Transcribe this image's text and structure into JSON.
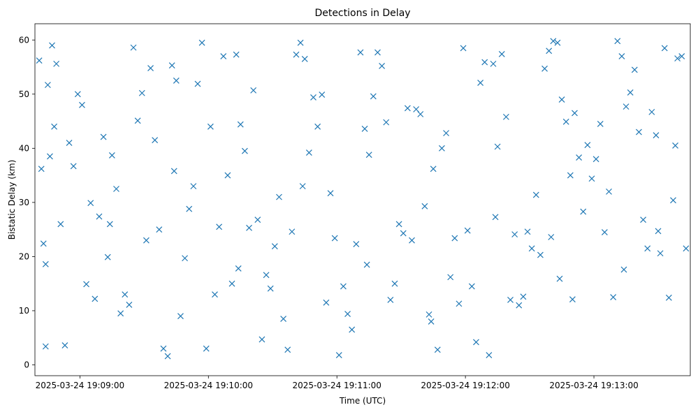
{
  "chart_data": {
    "type": "scatter",
    "title": "Detections in Delay",
    "xlabel": "Time (UTC)",
    "ylabel": "Bistatic Delay (km)",
    "marker": "x",
    "color": "#1f77b4",
    "grid": false,
    "legend": "none",
    "xlim": [
      "2025-03-24 19:08:39",
      "2025-03-24 19:13:45"
    ],
    "ylim": [
      -2,
      63
    ],
    "x_ticks": [
      "2025-03-24 19:09:00",
      "2025-03-24 19:10:00",
      "2025-03-24 19:11:00",
      "2025-03-24 19:12:00",
      "2025-03-24 19:13:00"
    ],
    "y_ticks": [
      0,
      10,
      20,
      30,
      40,
      50,
      60
    ],
    "points": {
      "x": [
        "2025-03-24 19:08:41",
        "2025-03-24 19:08:42",
        "2025-03-24 19:08:43",
        "2025-03-24 19:08:44",
        "2025-03-24 19:08:45",
        "2025-03-24 19:08:46",
        "2025-03-24 19:08:47",
        "2025-03-24 19:08:48",
        "2025-03-24 19:08:49",
        "2025-03-24 19:08:51",
        "2025-03-24 19:08:53",
        "2025-03-24 19:08:55",
        "2025-03-24 19:08:57",
        "2025-03-24 19:08:59",
        "2025-03-24 19:09:01",
        "2025-03-24 19:09:03",
        "2025-03-24 19:09:05",
        "2025-03-24 19:09:07",
        "2025-03-24 19:09:09",
        "2025-03-24 19:09:11",
        "2025-03-24 19:09:13",
        "2025-03-24 19:09:15",
        "2025-03-24 19:09:17",
        "2025-03-24 19:09:19",
        "2025-03-24 19:09:21",
        "2025-03-24 19:09:23",
        "2025-03-24 19:09:25",
        "2025-03-24 19:09:27",
        "2025-03-24 19:09:29",
        "2025-03-24 19:09:31",
        "2025-03-24 19:09:33",
        "2025-03-24 19:09:35",
        "2025-03-24 19:09:37",
        "2025-03-24 19:09:39",
        "2025-03-24 19:09:41",
        "2025-03-24 19:09:43",
        "2025-03-24 19:09:45",
        "2025-03-24 19:09:47",
        "2025-03-24 19:09:49",
        "2025-03-24 19:09:51",
        "2025-03-24 19:09:53",
        "2025-03-24 19:09:55",
        "2025-03-24 19:09:57",
        "2025-03-24 19:09:59",
        "2025-03-24 19:10:01",
        "2025-03-24 19:10:03",
        "2025-03-24 19:10:05",
        "2025-03-24 19:10:07",
        "2025-03-24 19:10:09",
        "2025-03-24 19:10:11",
        "2025-03-24 19:10:13",
        "2025-03-24 19:10:15",
        "2025-03-24 19:10:17",
        "2025-03-24 19:10:19",
        "2025-03-24 19:10:21",
        "2025-03-24 19:10:23",
        "2025-03-24 19:10:25",
        "2025-03-24 19:10:27",
        "2025-03-24 19:10:29",
        "2025-03-24 19:10:31",
        "2025-03-24 19:10:33",
        "2025-03-24 19:10:35",
        "2025-03-24 19:10:37",
        "2025-03-24 19:10:39",
        "2025-03-24 19:10:41",
        "2025-03-24 19:10:43",
        "2025-03-24 19:10:45",
        "2025-03-24 19:10:47",
        "2025-03-24 19:10:49",
        "2025-03-24 19:10:51",
        "2025-03-24 19:10:53",
        "2025-03-24 19:10:55",
        "2025-03-24 19:10:57",
        "2025-03-24 19:10:59",
        "2025-03-24 19:11:01",
        "2025-03-24 19:11:03",
        "2025-03-24 19:11:05",
        "2025-03-24 19:11:07",
        "2025-03-24 19:11:09",
        "2025-03-24 19:11:11",
        "2025-03-24 19:11:13",
        "2025-03-24 19:11:15",
        "2025-03-24 19:11:17",
        "2025-03-24 19:11:19",
        "2025-03-24 19:11:21",
        "2025-03-24 19:11:23",
        "2025-03-24 19:11:25",
        "2025-03-24 19:11:27",
        "2025-03-24 19:11:29",
        "2025-03-24 19:11:31",
        "2025-03-24 19:11:33",
        "2025-03-24 19:11:35",
        "2025-03-24 19:11:37",
        "2025-03-24 19:11:39",
        "2025-03-24 19:11:41",
        "2025-03-24 19:11:43",
        "2025-03-24 19:11:45",
        "2025-03-24 19:11:47",
        "2025-03-24 19:11:49",
        "2025-03-24 19:11:51",
        "2025-03-24 19:11:53",
        "2025-03-24 19:11:55",
        "2025-03-24 19:11:57",
        "2025-03-24 19:11:59",
        "2025-03-24 19:12:01",
        "2025-03-24 19:12:03",
        "2025-03-24 19:12:05",
        "2025-03-24 19:12:07",
        "2025-03-24 19:12:09",
        "2025-03-24 19:12:11",
        "2025-03-24 19:12:13",
        "2025-03-24 19:12:15",
        "2025-03-24 19:12:17",
        "2025-03-24 19:12:19",
        "2025-03-24 19:12:21",
        "2025-03-24 19:12:23",
        "2025-03-24 19:12:25",
        "2025-03-24 19:12:27",
        "2025-03-24 19:12:29",
        "2025-03-24 19:12:31",
        "2025-03-24 19:12:33",
        "2025-03-24 19:12:35",
        "2025-03-24 19:12:37",
        "2025-03-24 19:12:39",
        "2025-03-24 19:12:41",
        "2025-03-24 19:12:43",
        "2025-03-24 19:12:45",
        "2025-03-24 19:12:47",
        "2025-03-24 19:12:49",
        "2025-03-24 19:12:51",
        "2025-03-24 19:12:53",
        "2025-03-24 19:12:55",
        "2025-03-24 19:12:57",
        "2025-03-24 19:12:59",
        "2025-03-24 19:13:01",
        "2025-03-24 19:13:03",
        "2025-03-24 19:13:05",
        "2025-03-24 19:13:07",
        "2025-03-24 19:13:09",
        "2025-03-24 19:13:11",
        "2025-03-24 19:13:13",
        "2025-03-24 19:13:15",
        "2025-03-24 19:13:17",
        "2025-03-24 19:13:19",
        "2025-03-24 19:13:21",
        "2025-03-24 19:13:23",
        "2025-03-24 19:13:25",
        "2025-03-24 19:13:27",
        "2025-03-24 19:13:29",
        "2025-03-24 19:13:31",
        "2025-03-24 19:13:33",
        "2025-03-24 19:13:35",
        "2025-03-24 19:13:37",
        "2025-03-24 19:13:39",
        "2025-03-24 19:13:41",
        "2025-03-24 19:13:43",
        "2025-03-24 19:08:44",
        "2025-03-24 19:09:14",
        "2025-03-24 19:09:44",
        "2025-03-24 19:10:14",
        "2025-03-24 19:10:44",
        "2025-03-24 19:11:14",
        "2025-03-24 19:11:44",
        "2025-03-24 19:12:14",
        "2025-03-24 19:12:44",
        "2025-03-24 19:13:14",
        "2025-03-24 19:13:38",
        "2025-03-24 19:12:40",
        "2025-03-24 19:12:50",
        "2025-03-24 19:13:30"
      ],
      "y": [
        56.2,
        36.2,
        22.4,
        18.6,
        51.7,
        38.5,
        59.0,
        44.0,
        55.6,
        26.0,
        3.6,
        41.0,
        36.7,
        50.0,
        48.0,
        14.9,
        29.9,
        12.2,
        27.4,
        42.1,
        19.9,
        38.7,
        32.5,
        9.5,
        13.0,
        11.1,
        58.6,
        45.1,
        50.2,
        23.0,
        54.8,
        41.5,
        25.0,
        3.0,
        1.6,
        55.3,
        52.5,
        9.0,
        19.7,
        28.8,
        33.0,
        51.9,
        59.5,
        3.0,
        44.0,
        13.0,
        25.5,
        57.0,
        35.0,
        15.0,
        57.3,
        44.4,
        39.5,
        25.3,
        50.7,
        26.8,
        4.7,
        16.6,
        14.1,
        21.9,
        31.0,
        8.5,
        2.8,
        24.6,
        57.3,
        59.5,
        56.5,
        39.2,
        49.4,
        44.0,
        49.9,
        11.5,
        31.7,
        23.4,
        1.8,
        14.5,
        9.4,
        6.5,
        22.3,
        57.7,
        43.6,
        38.8,
        49.6,
        57.7,
        55.2,
        44.8,
        12.0,
        15.0,
        26.0,
        24.3,
        47.4,
        23.0,
        47.2,
        46.3,
        29.3,
        9.3,
        36.2,
        2.8,
        40.0,
        42.8,
        16.2,
        23.4,
        11.3,
        58.5,
        24.8,
        14.5,
        4.2,
        52.1,
        55.9,
        1.8,
        55.6,
        40.3,
        57.4,
        45.8,
        12.0,
        24.1,
        11.0,
        12.6,
        24.6,
        21.5,
        31.4,
        20.3,
        54.7,
        58.0,
        59.8,
        59.5,
        49.0,
        44.9,
        35.0,
        46.5,
        38.3,
        28.3,
        40.6,
        34.4,
        38.0,
        44.5,
        24.5,
        32.0,
        12.5,
        59.8,
        57.0,
        47.7,
        50.3,
        54.5,
        43.0,
        26.8,
        21.5,
        46.7,
        42.4,
        20.6,
        58.5,
        12.4,
        30.4,
        56.6,
        57.0,
        21.5,
        3.4,
        26.0,
        35.8,
        17.8,
        33.0,
        18.5,
        8.0,
        27.3,
        15.9,
        17.6,
        40.5,
        23.6,
        12.1,
        24.7
      ]
    }
  }
}
